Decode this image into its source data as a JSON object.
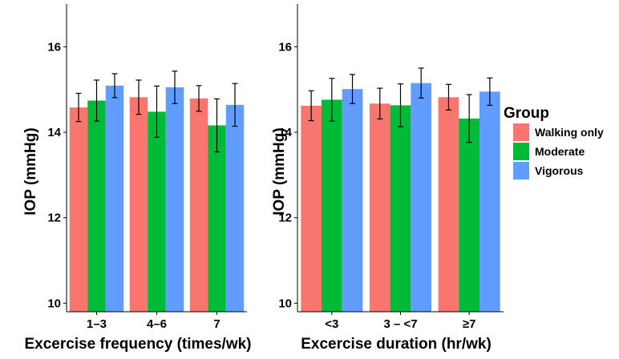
{
  "chart_data": [
    {
      "type": "bar",
      "xlabel": "Excercise frequency (times/wk)",
      "ylabel": "IOP (mmHg)",
      "ylim": [
        9.8,
        17
      ],
      "yticks": [
        10,
        12,
        14,
        16
      ],
      "grid": false,
      "categories": [
        "1–3",
        "4–6",
        "7"
      ],
      "series": [
        {
          "name": "Walking only",
          "values": [
            14.58,
            14.82,
            14.79
          ],
          "errors": [
            0.33,
            0.4,
            0.3
          ]
        },
        {
          "name": "Moderate",
          "values": [
            14.74,
            14.48,
            14.16
          ],
          "errors": [
            0.48,
            0.6,
            0.62
          ]
        },
        {
          "name": "Vigorous",
          "values": [
            15.09,
            15.05,
            14.64
          ],
          "errors": [
            0.28,
            0.38,
            0.5
          ]
        }
      ]
    },
    {
      "type": "bar",
      "xlabel": "Excercise duration (hr/wk)",
      "ylabel": "IOP (mmHg)",
      "ylim": [
        9.8,
        17
      ],
      "yticks": [
        10,
        12,
        14,
        16
      ],
      "grid": false,
      "categories": [
        "<3",
        "3 – <7",
        "≥7"
      ],
      "series": [
        {
          "name": "Walking only",
          "values": [
            14.62,
            14.67,
            14.82
          ],
          "errors": [
            0.35,
            0.36,
            0.3
          ]
        },
        {
          "name": "Moderate",
          "values": [
            14.76,
            14.63,
            14.32
          ],
          "errors": [
            0.5,
            0.5,
            0.56
          ]
        },
        {
          "name": "Vigorous",
          "values": [
            15.01,
            15.15,
            14.95
          ],
          "errors": [
            0.34,
            0.35,
            0.32
          ]
        }
      ]
    }
  ],
  "legend": {
    "title": "Group",
    "position": "right",
    "items": [
      {
        "label": "Walking only",
        "color": "#F8766D"
      },
      {
        "label": "Moderate",
        "color": "#00BA38"
      },
      {
        "label": "Vigorous",
        "color": "#619CFF"
      }
    ]
  }
}
